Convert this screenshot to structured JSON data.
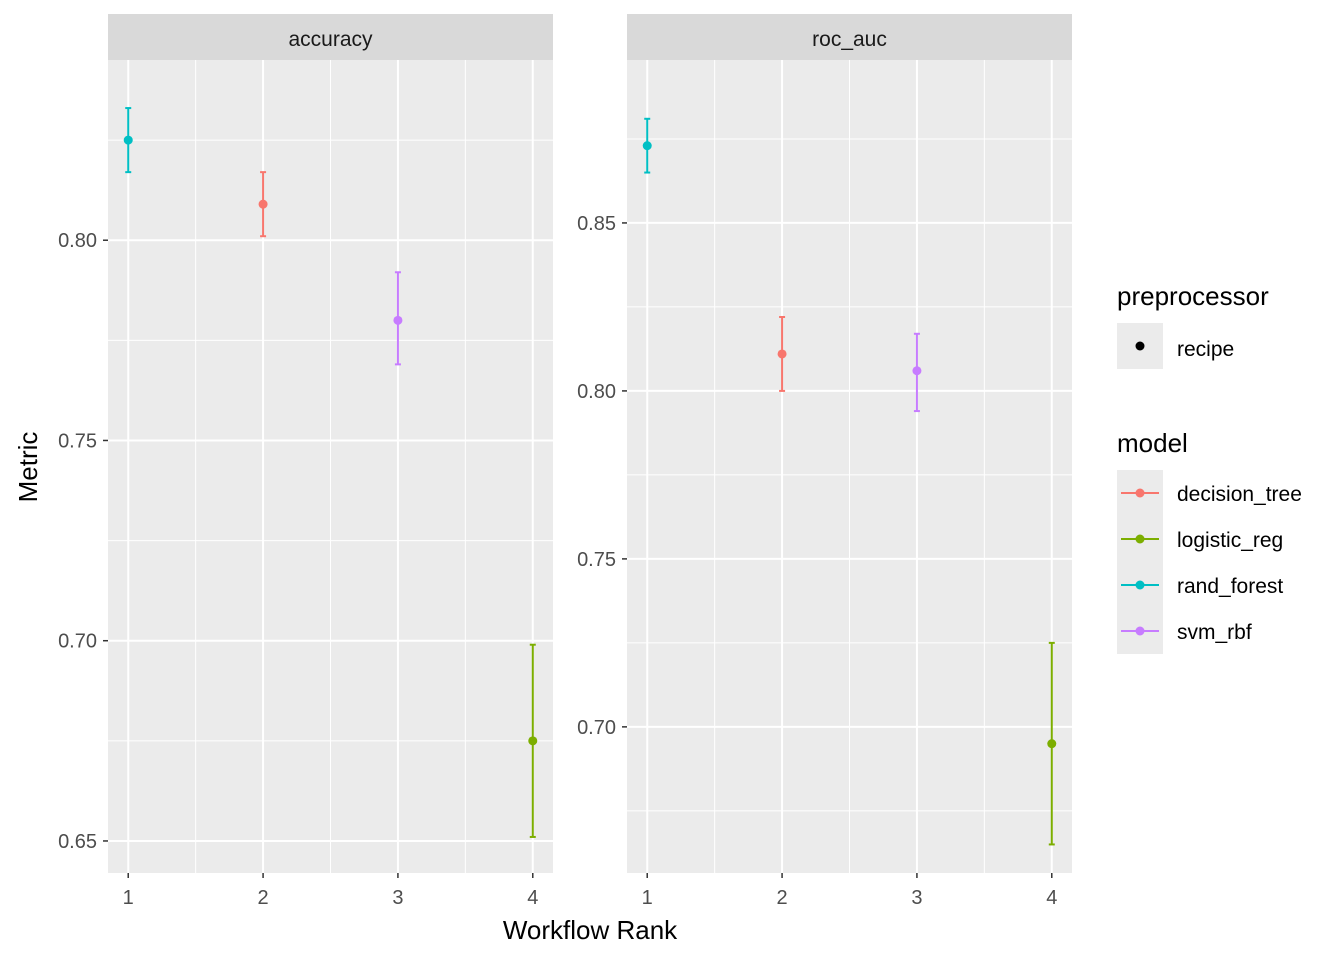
{
  "chart_data": {
    "type": "scatter",
    "xlabel": "Workflow Rank",
    "ylabel": "Metric",
    "x_ticks": [
      "1",
      "2",
      "3",
      "4"
    ],
    "xlim": [
      0.85,
      4.15
    ],
    "panels": [
      {
        "title": "accuracy",
        "ylim": [
          0.642,
          0.845
        ],
        "y_ticks": [
          0.65,
          0.7,
          0.75,
          0.8
        ],
        "y_tick_labels": [
          "0.65",
          "0.70",
          "0.75",
          "0.80"
        ],
        "points": [
          {
            "rank": 1,
            "model": "rand_forest",
            "mean": 0.825,
            "lower": 0.817,
            "upper": 0.833
          },
          {
            "rank": 2,
            "model": "decision_tree",
            "mean": 0.809,
            "lower": 0.801,
            "upper": 0.817
          },
          {
            "rank": 3,
            "model": "svm_rbf",
            "mean": 0.78,
            "lower": 0.769,
            "upper": 0.792
          },
          {
            "rank": 4,
            "model": "logistic_reg",
            "mean": 0.675,
            "lower": 0.651,
            "upper": 0.699
          }
        ]
      },
      {
        "title": "roc_auc",
        "ylim": [
          0.6565,
          0.8985
        ],
        "y_ticks": [
          0.7,
          0.75,
          0.8,
          0.85
        ],
        "y_tick_labels": [
          "0.70",
          "0.75",
          "0.80",
          "0.85"
        ],
        "points": [
          {
            "rank": 1,
            "model": "rand_forest",
            "mean": 0.873,
            "lower": 0.865,
            "upper": 0.881
          },
          {
            "rank": 2,
            "model": "decision_tree",
            "mean": 0.811,
            "lower": 0.8,
            "upper": 0.822
          },
          {
            "rank": 3,
            "model": "svm_rbf",
            "mean": 0.806,
            "lower": 0.794,
            "upper": 0.817
          },
          {
            "rank": 4,
            "model": "logistic_reg",
            "mean": 0.695,
            "lower": 0.665,
            "upper": 0.725
          }
        ]
      }
    ],
    "legend": {
      "placement": "right",
      "preprocessor": {
        "title": "preprocessor",
        "items": [
          {
            "label": "recipe",
            "color": "#000000"
          }
        ]
      },
      "model": {
        "title": "model",
        "items": [
          {
            "label": "decision_tree",
            "color": "#F8766D"
          },
          {
            "label": "logistic_reg",
            "color": "#7CAE00"
          },
          {
            "label": "rand_forest",
            "color": "#00BFC4"
          },
          {
            "label": "svm_rbf",
            "color": "#C77CFF"
          }
        ]
      }
    },
    "colors": {
      "panel_bg": "#EBEBEB",
      "strip_bg": "#D9D9D9",
      "grid": "#FFFFFF",
      "tick_text": "#4D4D4D"
    }
  }
}
